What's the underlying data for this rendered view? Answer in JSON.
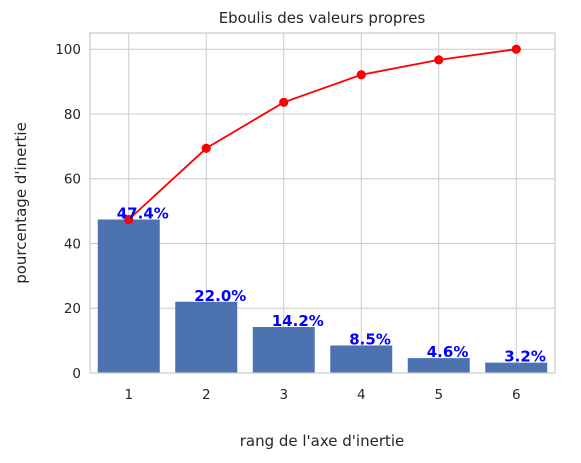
{
  "chart_data": {
    "type": "bar",
    "title": "Eboulis des valeurs propres",
    "xlabel": "rang de l'axe d'inertie",
    "ylabel": "pourcentage d'inertie",
    "categories": [
      "1",
      "2",
      "3",
      "4",
      "5",
      "6"
    ],
    "yticks": [
      "0",
      "20",
      "40",
      "60",
      "80",
      "100"
    ],
    "ylim": [
      0,
      105
    ],
    "grid": true,
    "series": [
      {
        "type": "bar",
        "values": [
          47.4,
          22.0,
          14.2,
          8.5,
          4.6,
          3.2
        ],
        "labels": [
          "47.4%",
          "22.0%",
          "14.2%",
          "8.5%",
          "4.6%",
          "3.2%"
        ],
        "color": "#4c72b0",
        "label_color": "#0000ff"
      },
      {
        "type": "line",
        "values": [
          47.4,
          69.4,
          83.6,
          92.1,
          96.7,
          100.0
        ],
        "color": "#ff0000",
        "marker": "circle"
      }
    ]
  }
}
